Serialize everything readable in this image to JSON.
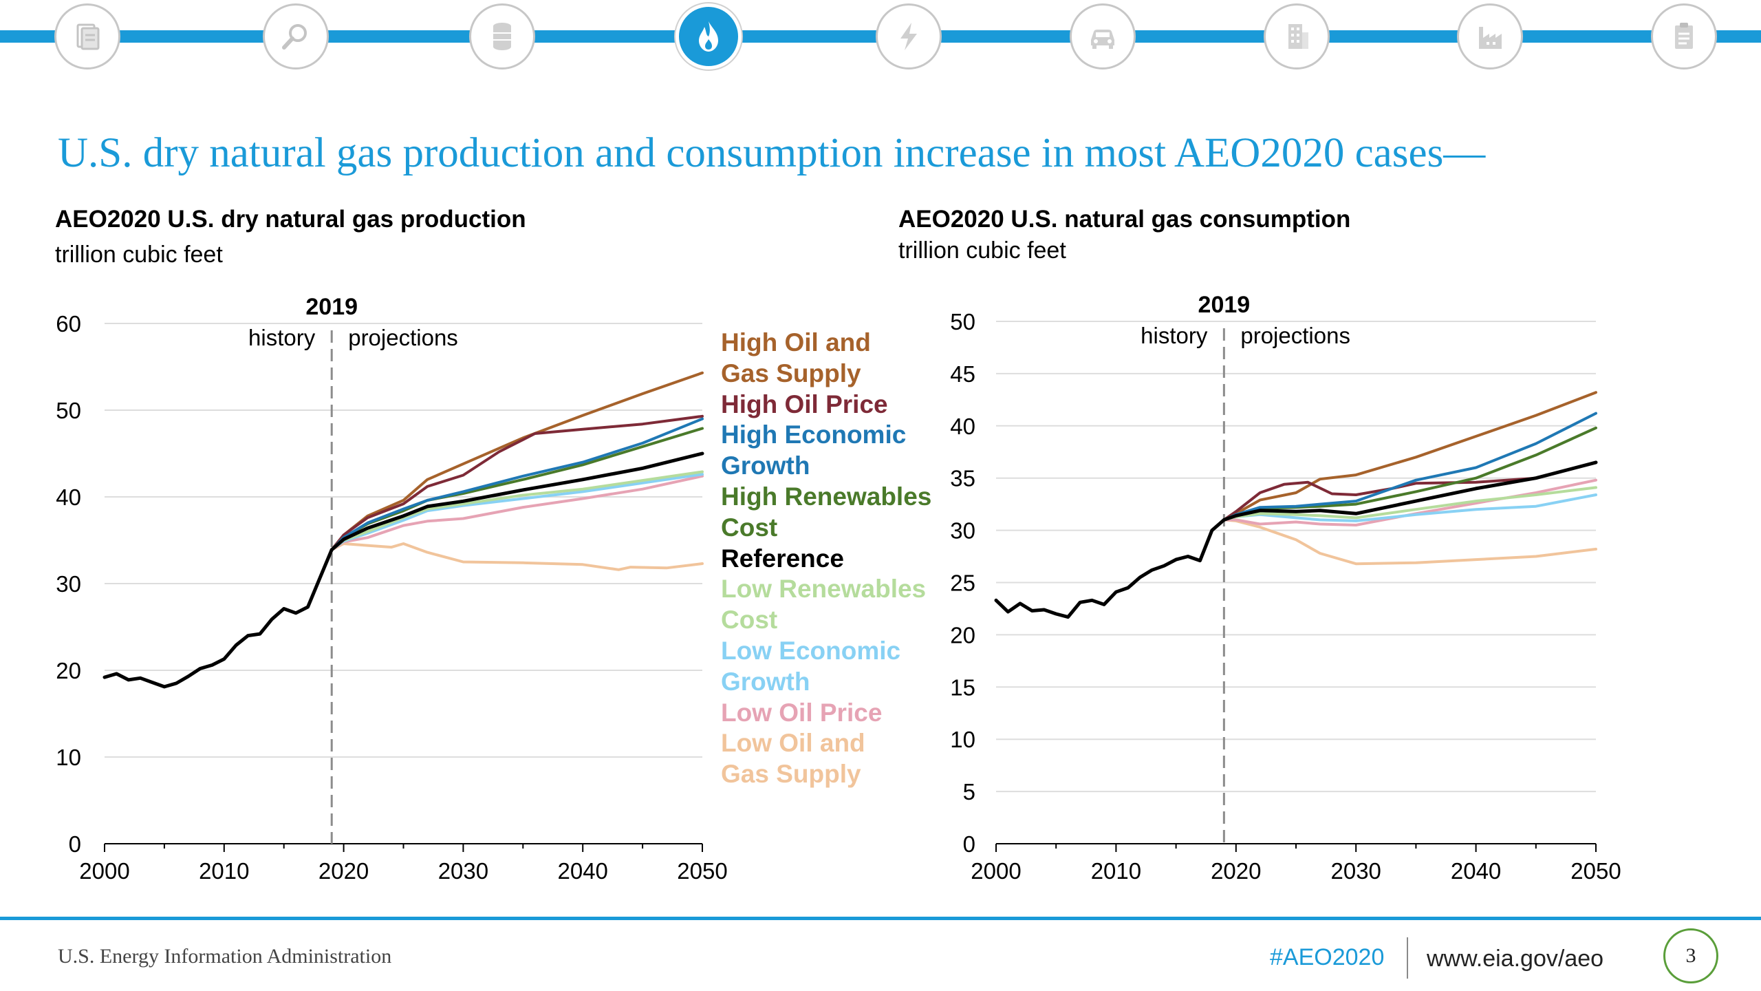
{
  "nav": {
    "icons": [
      "document-icon",
      "magnifier-icon",
      "oil-barrel-icon",
      "flame-icon",
      "lightning-icon",
      "car-icon",
      "building-icon",
      "factory-icon",
      "clipboard-icon"
    ],
    "active_icon": "flame-icon",
    "accent_color": "#1a9ad8"
  },
  "slide_title": "U.S. dry natural gas production and consumption increase in most AEO2020 cases—",
  "left_chart": {
    "title": "AEO2020 U.S. dry natural gas production",
    "unit": "trillion cubic feet"
  },
  "right_chart": {
    "title": "AEO2020 U.S. natural gas consumption",
    "unit": "trillion cubic feet"
  },
  "legend": [
    {
      "label": "High Oil and\nGas Supply",
      "color": "#a6622b"
    },
    {
      "label": "High Oil Price",
      "color": "#7e2a37"
    },
    {
      "label": "High Economic\nGrowth",
      "color": "#1f78b4"
    },
    {
      "label": "High Renewables\nCost",
      "color": "#4a7a2a"
    },
    {
      "label": "Reference",
      "color": "#000000"
    },
    {
      "label": "Low Renewables\nCost",
      "color": "#b5dc9c"
    },
    {
      "label": "Low Economic\nGrowth",
      "color": "#88d1f4"
    },
    {
      "label": "Low Oil Price",
      "color": "#e6a3b4"
    },
    {
      "label": "Low Oil and\nGas Supply",
      "color": "#f1c49b"
    }
  ],
  "chart_data": [
    {
      "type": "line",
      "title": "AEO2020 U.S. dry natural gas production",
      "ylabel": "trillion cubic feet",
      "xlim": [
        2000,
        2050
      ],
      "ylim": [
        0,
        60
      ],
      "yticks": [
        0,
        10,
        20,
        30,
        40,
        50,
        60
      ],
      "xticks": [
        2000,
        2010,
        2020,
        2030,
        2040,
        2050
      ],
      "grid": "horizontal",
      "divider_year": 2019,
      "divider_label": "2019",
      "history_label": "history",
      "projections_label": "projections",
      "history": {
        "name": "Reference",
        "x": [
          2000,
          2001,
          2002,
          2003,
          2004,
          2005,
          2006,
          2007,
          2008,
          2009,
          2010,
          2011,
          2012,
          2013,
          2014,
          2015,
          2016,
          2017,
          2018,
          2019
        ],
        "y": [
          19.2,
          19.6,
          18.9,
          19.1,
          18.6,
          18.1,
          18.5,
          19.3,
          20.2,
          20.6,
          21.3,
          22.9,
          24.0,
          24.2,
          25.9,
          27.1,
          26.6,
          27.3,
          30.6,
          33.9
        ]
      },
      "series": [
        {
          "name": "High Oil and Gas Supply",
          "color": "#a6622b",
          "x": [
            2019,
            2020,
            2022,
            2025,
            2027,
            2030,
            2035,
            2040,
            2045,
            2050
          ],
          "y": [
            33.9,
            35.6,
            37.8,
            39.6,
            42.0,
            43.8,
            46.8,
            49.4,
            51.9,
            54.3
          ]
        },
        {
          "name": "High Oil Price",
          "color": "#7e2a37",
          "x": [
            2019,
            2020,
            2022,
            2025,
            2027,
            2030,
            2033,
            2036,
            2040,
            2045,
            2050
          ],
          "y": [
            33.9,
            35.6,
            37.6,
            39.2,
            41.2,
            42.5,
            45.2,
            47.3,
            47.8,
            48.4,
            49.3
          ]
        },
        {
          "name": "High Economic Growth",
          "color": "#1f78b4",
          "x": [
            2019,
            2020,
            2022,
            2025,
            2027,
            2030,
            2035,
            2040,
            2045,
            2050
          ],
          "y": [
            33.9,
            35.3,
            37.0,
            38.6,
            39.6,
            40.6,
            42.4,
            44.0,
            46.2,
            49.0
          ]
        },
        {
          "name": "High Renewables Cost",
          "color": "#4a7a2a",
          "x": [
            2019,
            2020,
            2022,
            2025,
            2027,
            2030,
            2035,
            2040,
            2045,
            2050
          ],
          "y": [
            33.9,
            35.3,
            36.9,
            38.4,
            39.6,
            40.4,
            42.0,
            43.7,
            45.8,
            47.9
          ]
        },
        {
          "name": "Reference",
          "color": "#000000",
          "x": [
            2019,
            2020,
            2022,
            2025,
            2027,
            2030,
            2035,
            2040,
            2045,
            2050
          ],
          "y": [
            33.9,
            35.1,
            36.4,
            37.8,
            38.9,
            39.5,
            40.8,
            42.0,
            43.3,
            45.0
          ]
        },
        {
          "name": "Low Renewables Cost",
          "color": "#b5dc9c",
          "x": [
            2019,
            2020,
            2022,
            2025,
            2027,
            2030,
            2035,
            2040,
            2045,
            2050
          ],
          "y": [
            33.9,
            35.0,
            36.0,
            37.6,
            38.6,
            39.2,
            40.2,
            40.9,
            41.9,
            42.9
          ]
        },
        {
          "name": "Low Economic Growth",
          "color": "#88d1f4",
          "x": [
            2019,
            2020,
            2022,
            2025,
            2027,
            2030,
            2035,
            2040,
            2045,
            2050
          ],
          "y": [
            33.9,
            34.9,
            35.8,
            37.3,
            38.4,
            39.0,
            39.8,
            40.6,
            41.6,
            42.6
          ]
        },
        {
          "name": "Low Oil Price",
          "color": "#e6a3b4",
          "x": [
            2019,
            2020,
            2022,
            2025,
            2027,
            2030,
            2035,
            2040,
            2045,
            2050
          ],
          "y": [
            33.9,
            34.8,
            35.3,
            36.7,
            37.2,
            37.5,
            38.8,
            39.8,
            40.9,
            42.4
          ]
        },
        {
          "name": "Low Oil and Gas Supply",
          "color": "#f1c49b",
          "x": [
            2019,
            2020,
            2022,
            2024,
            2025,
            2027,
            2030,
            2035,
            2040,
            2043,
            2044,
            2047,
            2050
          ],
          "y": [
            33.9,
            34.6,
            34.4,
            34.2,
            34.6,
            33.6,
            32.5,
            32.4,
            32.2,
            31.6,
            31.9,
            31.8,
            32.3
          ]
        }
      ]
    },
    {
      "type": "line",
      "title": "AEO2020 U.S. natural gas consumption",
      "ylabel": "trillion cubic feet",
      "xlim": [
        2000,
        2050
      ],
      "ylim": [
        0,
        50
      ],
      "yticks": [
        0,
        5,
        10,
        15,
        20,
        25,
        30,
        35,
        40,
        45,
        50
      ],
      "xticks": [
        2000,
        2010,
        2020,
        2030,
        2040,
        2050
      ],
      "grid": "horizontal",
      "divider_year": 2019,
      "divider_label": "2019",
      "history_label": "history",
      "projections_label": "projections",
      "history": {
        "name": "Reference",
        "x": [
          2000,
          2001,
          2002,
          2003,
          2004,
          2005,
          2006,
          2007,
          2008,
          2009,
          2010,
          2011,
          2012,
          2013,
          2014,
          2015,
          2016,
          2017,
          2018,
          2019
        ],
        "y": [
          23.3,
          22.2,
          23.0,
          22.3,
          22.4,
          22.0,
          21.7,
          23.1,
          23.3,
          22.9,
          24.1,
          24.5,
          25.5,
          26.2,
          26.6,
          27.2,
          27.5,
          27.1,
          30.0,
          31.0
        ]
      },
      "series": [
        {
          "name": "High Oil and Gas Supply",
          "color": "#a6622b",
          "x": [
            2019,
            2020,
            2022,
            2025,
            2027,
            2030,
            2035,
            2040,
            2045,
            2050
          ],
          "y": [
            31.0,
            31.6,
            32.9,
            33.6,
            34.9,
            35.3,
            37.0,
            39.0,
            41.0,
            43.2
          ]
        },
        {
          "name": "High Oil Price",
          "color": "#7e2a37",
          "x": [
            2019,
            2020,
            2022,
            2024,
            2026,
            2028,
            2030,
            2033,
            2035,
            2040,
            2045,
            2050
          ],
          "y": [
            31.0,
            31.8,
            33.6,
            34.4,
            34.6,
            33.5,
            33.4,
            34.0,
            34.5,
            34.6,
            35.0,
            36.5
          ]
        },
        {
          "name": "High Economic Growth",
          "color": "#1f78b4",
          "x": [
            2019,
            2020,
            2022,
            2025,
            2027,
            2030,
            2035,
            2040,
            2045,
            2050
          ],
          "y": [
            31.0,
            31.5,
            32.2,
            32.3,
            32.5,
            32.8,
            34.8,
            36.0,
            38.3,
            41.2
          ]
        },
        {
          "name": "High Renewables Cost",
          "color": "#4a7a2a",
          "x": [
            2019,
            2020,
            2022,
            2025,
            2027,
            2030,
            2035,
            2040,
            2045,
            2050
          ],
          "y": [
            31.0,
            31.5,
            32.1,
            32.2,
            32.3,
            32.5,
            33.7,
            35.0,
            37.2,
            39.8
          ]
        },
        {
          "name": "Reference",
          "color": "#000000",
          "x": [
            2019,
            2020,
            2022,
            2025,
            2027,
            2030,
            2035,
            2040,
            2045,
            2050
          ],
          "y": [
            31.0,
            31.4,
            31.9,
            31.8,
            31.9,
            31.6,
            32.8,
            34.0,
            35.0,
            36.5
          ]
        },
        {
          "name": "Low Renewables Cost",
          "color": "#b5dc9c",
          "x": [
            2019,
            2020,
            2022,
            2025,
            2027,
            2030,
            2035,
            2040,
            2045,
            2050
          ],
          "y": [
            31.0,
            31.3,
            31.6,
            31.5,
            31.4,
            31.2,
            32.0,
            32.8,
            33.4,
            34.1
          ]
        },
        {
          "name": "Low Economic Growth",
          "color": "#88d1f4",
          "x": [
            2019,
            2020,
            2022,
            2025,
            2027,
            2030,
            2035,
            2040,
            2045,
            2050
          ],
          "y": [
            31.0,
            31.3,
            31.5,
            31.2,
            31.0,
            30.9,
            31.5,
            32.0,
            32.3,
            33.4
          ]
        },
        {
          "name": "Low Oil Price",
          "color": "#e6a3b4",
          "x": [
            2019,
            2020,
            2022,
            2025,
            2027,
            2030,
            2035,
            2040,
            2045,
            2050
          ],
          "y": [
            31.0,
            31.0,
            30.6,
            30.8,
            30.6,
            30.5,
            31.6,
            32.6,
            33.6,
            34.8
          ]
        },
        {
          "name": "Low Oil and Gas Supply",
          "color": "#f1c49b",
          "x": [
            2019,
            2020,
            2022,
            2024,
            2025,
            2027,
            2030,
            2035,
            2040,
            2045,
            2050
          ],
          "y": [
            31.0,
            30.9,
            30.3,
            29.5,
            29.1,
            27.8,
            26.8,
            26.9,
            27.2,
            27.5,
            28.2
          ]
        }
      ]
    }
  ],
  "footer": {
    "organization": "U.S. Energy Information Administration",
    "hashtag": "#AEO2020",
    "url": "www.eia.gov/aeo",
    "page_number": "3"
  }
}
